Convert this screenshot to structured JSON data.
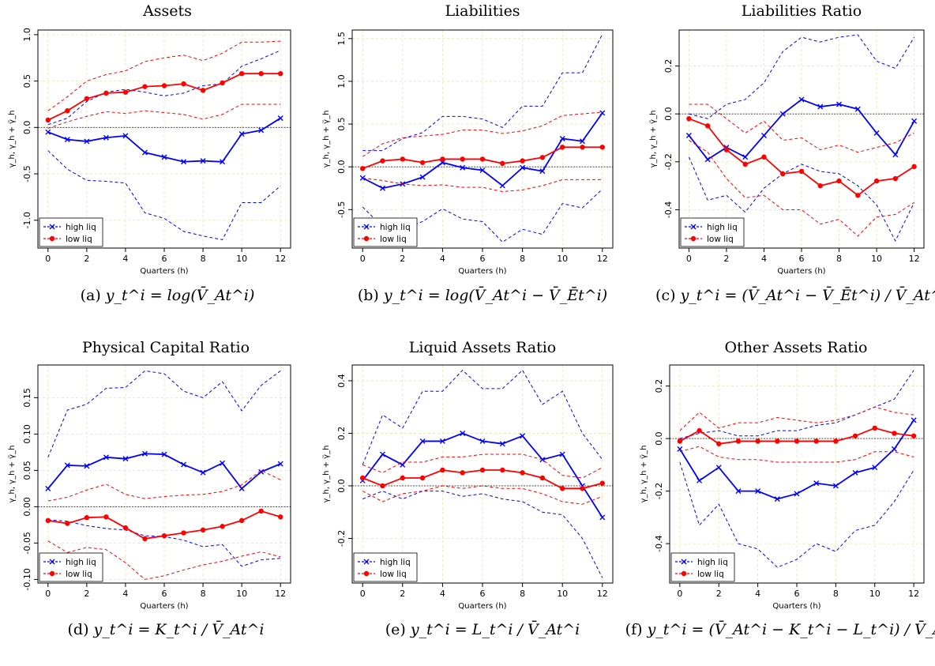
{
  "chart_data": [
    {
      "type": "line",
      "title": "Assets",
      "caption": {
        "label": "(a)",
        "formula": "y_t^i = log(V̄_At^i)"
      },
      "xlabel": "Quarters (h)",
      "ylabel": "γ_h, γ_h + γ̃_h",
      "x": [
        0,
        1,
        2,
        3,
        4,
        5,
        6,
        7,
        8,
        9,
        10,
        11,
        12
      ],
      "xticks": [
        0,
        2,
        4,
        6,
        8,
        10,
        12
      ],
      "ylim": [
        -1.3,
        1.05
      ],
      "yticks": [
        -1.0,
        -0.5,
        0.0,
        0.5,
        1.0
      ],
      "ytick_labels": [
        "-1.0",
        "-0.5",
        "0.0",
        "0.5",
        "1.0"
      ],
      "legend": {
        "position": "bottom-left",
        "entries": [
          "high liq",
          "low liq"
        ]
      },
      "grid": true,
      "series": [
        {
          "name": "high liq",
          "color": "#0000ff",
          "marker": "x",
          "values": [
            -0.05,
            -0.13,
            -0.15,
            -0.11,
            -0.09,
            -0.27,
            -0.32,
            -0.37,
            -0.36,
            -0.37,
            -0.07,
            -0.03,
            0.1
          ],
          "lower": [
            -0.25,
            -0.45,
            -0.57,
            -0.58,
            -0.6,
            -0.92,
            -0.98,
            -1.12,
            -1.17,
            -1.21,
            -0.81,
            -0.81,
            -0.63
          ],
          "upper": [
            0.03,
            0.1,
            0.28,
            0.38,
            0.41,
            0.38,
            0.34,
            0.37,
            0.45,
            0.47,
            0.66,
            0.74,
            0.83
          ]
        },
        {
          "name": "low liq",
          "color": "#ff0000",
          "marker": "o",
          "values": [
            0.08,
            0.18,
            0.31,
            0.37,
            0.38,
            0.44,
            0.45,
            0.47,
            0.4,
            0.48,
            0.58,
            0.58,
            0.58
          ],
          "lower": [
            -0.01,
            0.06,
            0.12,
            0.17,
            0.15,
            0.18,
            0.16,
            0.14,
            0.09,
            0.14,
            0.25,
            0.25,
            0.25
          ],
          "upper": [
            0.18,
            0.33,
            0.5,
            0.57,
            0.61,
            0.71,
            0.75,
            0.78,
            0.72,
            0.8,
            0.92,
            0.92,
            0.93
          ]
        }
      ]
    },
    {
      "type": "line",
      "title": "Liabilities",
      "caption": {
        "label": "(b)",
        "formula": "y_t^i = log(V̄_At^i − V̄_Ēt^i)"
      },
      "xlabel": "Quarters (h)",
      "ylabel": "γ_h, γ_h + γ̃_h",
      "x": [
        0,
        1,
        2,
        3,
        4,
        5,
        6,
        7,
        8,
        9,
        10,
        11,
        12
      ],
      "xticks": [
        0,
        2,
        4,
        6,
        8,
        10,
        12
      ],
      "ylim": [
        -0.95,
        1.6
      ],
      "yticks": [
        -0.5,
        0.0,
        0.5,
        1.0,
        1.5
      ],
      "ytick_labels": [
        "-0.5",
        "0.0",
        "0.5",
        "1.0",
        "1.5"
      ],
      "legend": {
        "position": "bottom-left",
        "entries": [
          "high liq",
          "low liq"
        ]
      },
      "grid": true,
      "series": [
        {
          "name": "high liq",
          "color": "#0000ff",
          "marker": "x",
          "values": [
            -0.13,
            -0.25,
            -0.2,
            -0.12,
            0.05,
            -0.01,
            -0.04,
            -0.22,
            -0.01,
            -0.05,
            0.33,
            0.3,
            0.63
          ],
          "lower": [
            -0.47,
            -0.7,
            -0.72,
            -0.64,
            -0.49,
            -0.61,
            -0.64,
            -0.88,
            -0.73,
            -0.79,
            -0.43,
            -0.48,
            -0.26
          ],
          "upper": [
            0.19,
            0.19,
            0.33,
            0.4,
            0.59,
            0.59,
            0.56,
            0.46,
            0.71,
            0.71,
            1.1,
            1.1,
            1.55
          ]
        },
        {
          "name": "low liq",
          "color": "#ff0000",
          "marker": "o",
          "values": [
            -0.02,
            0.07,
            0.09,
            0.05,
            0.09,
            0.09,
            0.09,
            0.04,
            0.07,
            0.11,
            0.23,
            0.23,
            0.23
          ],
          "lower": [
            -0.13,
            -0.16,
            -0.2,
            -0.22,
            -0.21,
            -0.24,
            -0.24,
            -0.29,
            -0.27,
            -0.22,
            -0.15,
            -0.15,
            -0.15
          ],
          "upper": [
            0.12,
            0.27,
            0.34,
            0.36,
            0.38,
            0.43,
            0.43,
            0.39,
            0.42,
            0.48,
            0.6,
            0.62,
            0.64
          ]
        }
      ]
    },
    {
      "type": "line",
      "title": "Liabilities Ratio",
      "caption": {
        "label": "(c)",
        "formula": "y_t^i = (V̄_At^i − V̄_Ēt^i) / V̄_At^i"
      },
      "xlabel": "Quarters (h)",
      "ylabel": "γ_h, γ_h + γ̃_h",
      "x": [
        0,
        1,
        2,
        3,
        4,
        5,
        6,
        7,
        8,
        9,
        10,
        11,
        12
      ],
      "xticks": [
        0,
        2,
        4,
        6,
        8,
        10,
        12
      ],
      "ylim": [
        -0.56,
        0.35
      ],
      "yticks": [
        -0.4,
        -0.2,
        0.0,
        0.2
      ],
      "ytick_labels": [
        "-0.4",
        "-0.2",
        "0.0",
        "0.2"
      ],
      "legend": {
        "position": "bottom-left",
        "entries": [
          "high liq",
          "low liq"
        ]
      },
      "grid": true,
      "series": [
        {
          "name": "high liq",
          "color": "#0000ff",
          "marker": "x",
          "values": [
            -0.09,
            -0.19,
            -0.14,
            -0.18,
            -0.09,
            0.0,
            0.06,
            0.03,
            0.04,
            0.02,
            -0.08,
            -0.17,
            -0.03
          ],
          "lower": [
            -0.18,
            -0.36,
            -0.34,
            -0.41,
            -0.31,
            -0.25,
            -0.21,
            -0.24,
            -0.25,
            -0.3,
            -0.38,
            -0.53,
            -0.37
          ],
          "upper": [
            0.0,
            -0.02,
            0.04,
            0.06,
            0.13,
            0.26,
            0.32,
            0.3,
            0.32,
            0.33,
            0.22,
            0.19,
            0.32
          ]
        },
        {
          "name": "low liq",
          "color": "#ff0000",
          "marker": "o",
          "values": [
            -0.02,
            -0.05,
            -0.15,
            -0.21,
            -0.18,
            -0.25,
            -0.24,
            -0.3,
            -0.28,
            -0.34,
            -0.28,
            -0.27,
            -0.22
          ],
          "lower": [
            -0.11,
            -0.16,
            -0.27,
            -0.35,
            -0.34,
            -0.4,
            -0.4,
            -0.46,
            -0.44,
            -0.51,
            -0.43,
            -0.42,
            -0.37
          ],
          "upper": [
            0.04,
            0.04,
            -0.02,
            -0.08,
            -0.03,
            -0.11,
            -0.1,
            -0.15,
            -0.13,
            -0.16,
            -0.14,
            -0.12,
            -0.08
          ]
        }
      ]
    },
    {
      "type": "line",
      "title": "Physical Capital Ratio",
      "caption": {
        "label": "(d)",
        "formula": "y_t^i = K_t^i / V̄_At^i"
      },
      "xlabel": "Quarters (h)",
      "ylabel": "γ_h, γ_h + γ̃_h",
      "x": [
        0,
        1,
        2,
        3,
        4,
        5,
        6,
        7,
        8,
        9,
        10,
        11,
        12
      ],
      "xticks": [
        0,
        2,
        4,
        6,
        8,
        10,
        12
      ],
      "ylim": [
        -0.105,
        0.195
      ],
      "yticks": [
        -0.1,
        -0.05,
        0.0,
        0.05,
        0.1,
        0.15
      ],
      "ytick_labels": [
        "-0.10",
        "-0.05",
        "0.00",
        "0.05",
        "0.10",
        "0.15"
      ],
      "legend": {
        "position": "bottom-left",
        "entries": [
          "high liq",
          "low liq"
        ]
      },
      "grid": true,
      "series": [
        {
          "name": "high liq",
          "color": "#0000ff",
          "marker": "x",
          "values": [
            0.025,
            0.057,
            0.056,
            0.068,
            0.066,
            0.073,
            0.072,
            0.058,
            0.047,
            0.06,
            0.025,
            0.048,
            0.059
          ],
          "lower": [
            -0.018,
            -0.02,
            -0.026,
            -0.03,
            -0.032,
            -0.04,
            -0.041,
            -0.046,
            -0.055,
            -0.052,
            -0.082,
            -0.073,
            -0.071
          ],
          "upper": [
            0.068,
            0.133,
            0.141,
            0.163,
            0.164,
            0.187,
            0.183,
            0.159,
            0.15,
            0.172,
            0.132,
            0.167,
            0.187
          ]
        },
        {
          "name": "low liq",
          "color": "#ff0000",
          "marker": "o",
          "values": [
            -0.019,
            -0.023,
            -0.015,
            -0.014,
            -0.029,
            -0.044,
            -0.04,
            -0.036,
            -0.032,
            -0.027,
            -0.019,
            -0.006,
            -0.014
          ],
          "lower": [
            -0.047,
            -0.063,
            -0.056,
            -0.059,
            -0.077,
            -0.1,
            -0.095,
            -0.087,
            -0.08,
            -0.075,
            -0.068,
            -0.062,
            -0.069
          ],
          "upper": [
            0.008,
            0.013,
            0.023,
            0.031,
            0.017,
            0.011,
            0.014,
            0.016,
            0.017,
            0.021,
            0.03,
            0.05,
            0.037
          ]
        }
      ]
    },
    {
      "type": "line",
      "title": "Liquid Assets Ratio",
      "caption": {
        "label": "(e)",
        "formula": "y_t^i = L_t^i / V̄_At^i"
      },
      "xlabel": "Quarters (h)",
      "ylabel": "γ_h, γ_h + γ̃_h",
      "x": [
        0,
        1,
        2,
        3,
        4,
        5,
        6,
        7,
        8,
        9,
        10,
        11,
        12
      ],
      "xticks": [
        0,
        2,
        4,
        6,
        8,
        10,
        12
      ],
      "ylim": [
        -0.37,
        0.46
      ],
      "yticks": [
        -0.2,
        0.0,
        0.2,
        0.4
      ],
      "ytick_labels": [
        "-0.2",
        "0.0",
        "0.2",
        "0.4"
      ],
      "legend": {
        "position": "bottom-left",
        "entries": [
          "high liq",
          "low liq"
        ]
      },
      "grid": true,
      "series": [
        {
          "name": "high liq",
          "color": "#0000ff",
          "marker": "x",
          "values": [
            0.02,
            0.12,
            0.08,
            0.17,
            0.17,
            0.2,
            0.17,
            0.16,
            0.19,
            0.1,
            0.12,
            0.0,
            -0.12
          ],
          "lower": [
            -0.05,
            -0.02,
            -0.05,
            -0.02,
            -0.02,
            -0.04,
            -0.03,
            -0.05,
            -0.06,
            -0.1,
            -0.11,
            -0.2,
            -0.35
          ],
          "upper": [
            0.08,
            0.27,
            0.22,
            0.36,
            0.36,
            0.44,
            0.37,
            0.37,
            0.44,
            0.31,
            0.36,
            0.2,
            0.1
          ]
        },
        {
          "name": "low liq",
          "color": "#ff0000",
          "marker": "o",
          "values": [
            0.03,
            0.0,
            0.03,
            0.03,
            0.06,
            0.05,
            0.06,
            0.06,
            0.05,
            0.03,
            -0.01,
            -0.01,
            0.01
          ],
          "lower": [
            -0.02,
            -0.06,
            -0.03,
            -0.02,
            0.0,
            -0.01,
            0.0,
            -0.01,
            -0.01,
            -0.03,
            -0.06,
            -0.07,
            -0.04
          ],
          "upper": [
            0.08,
            0.05,
            0.09,
            0.09,
            0.11,
            0.11,
            0.12,
            0.12,
            0.12,
            0.1,
            0.04,
            0.03,
            0.07
          ]
        }
      ]
    },
    {
      "type": "line",
      "title": "Other Assets Ratio",
      "caption": {
        "label": "(f)",
        "formula": "y_t^i = (V̄_At^i − K_t^i − L_t^i) / V̄_At^i"
      },
      "xlabel": "Quarters (h)",
      "ylabel": "γ_h, γ_h + γ̃_h",
      "x": [
        0,
        1,
        2,
        3,
        4,
        5,
        6,
        7,
        8,
        9,
        10,
        11,
        12
      ],
      "xticks": [
        0,
        2,
        4,
        6,
        8,
        10,
        12
      ],
      "ylim": [
        -0.55,
        0.28
      ],
      "yticks": [
        -0.4,
        -0.2,
        0.0,
        0.2
      ],
      "ytick_labels": [
        "-0.4",
        "-0.2",
        "0.0",
        "0.2"
      ],
      "legend": {
        "position": "bottom-left",
        "entries": [
          "high liq",
          "low liq"
        ]
      },
      "grid": true,
      "series": [
        {
          "name": "high liq",
          "color": "#0000ff",
          "marker": "x",
          "values": [
            -0.04,
            -0.16,
            -0.11,
            -0.2,
            -0.2,
            -0.23,
            -0.21,
            -0.17,
            -0.18,
            -0.13,
            -0.11,
            -0.04,
            0.07
          ],
          "lower": [
            -0.09,
            -0.33,
            -0.25,
            -0.4,
            -0.42,
            -0.49,
            -0.46,
            -0.4,
            -0.43,
            -0.35,
            -0.33,
            -0.24,
            -0.12
          ],
          "upper": [
            0.0,
            0.02,
            0.03,
            0.01,
            0.01,
            0.03,
            0.03,
            0.05,
            0.06,
            0.09,
            0.12,
            0.15,
            0.26
          ]
        },
        {
          "name": "low liq",
          "color": "#ff0000",
          "marker": "o",
          "values": [
            -0.01,
            0.03,
            -0.02,
            -0.01,
            -0.01,
            -0.01,
            -0.01,
            -0.01,
            -0.01,
            0.01,
            0.04,
            0.02,
            0.01
          ],
          "lower": [
            -0.05,
            -0.03,
            -0.07,
            -0.08,
            -0.08,
            -0.09,
            -0.09,
            -0.09,
            -0.09,
            -0.08,
            -0.05,
            -0.05,
            -0.07
          ],
          "upper": [
            0.03,
            0.1,
            0.04,
            0.06,
            0.06,
            0.08,
            0.07,
            0.06,
            0.07,
            0.09,
            0.12,
            0.1,
            0.09
          ]
        }
      ]
    }
  ]
}
